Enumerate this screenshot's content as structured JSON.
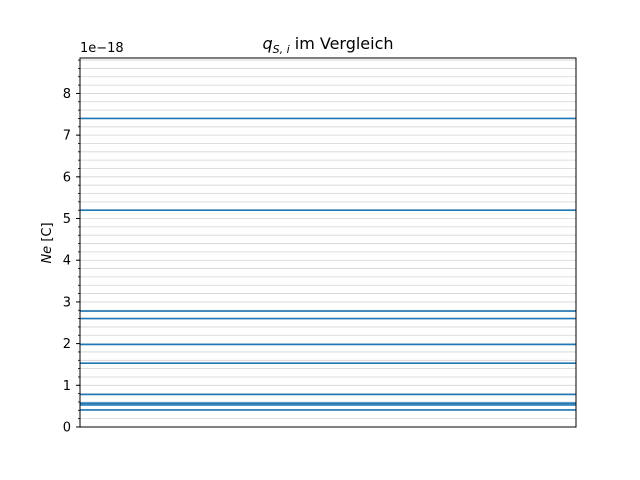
{
  "chart_data": {
    "type": "line",
    "title_main": "q",
    "title_sub": "S, i",
    "title_rest": " im Vergleich",
    "ylabel_var": "Ne",
    "ylabel_unit": " [C]",
    "offset_text": "1e−18",
    "ylim": [
      0,
      8.85
    ],
    "yticks": [
      0,
      1,
      2,
      3,
      4,
      5,
      6,
      7,
      8
    ],
    "ytick_labels": [
      "0",
      "1",
      "2",
      "3",
      "4",
      "5",
      "6",
      "7",
      "8"
    ],
    "minor_step": 0.2,
    "grid": "minor horizontal",
    "x_ticks_visible": false,
    "line_color": "#1f77b4",
    "grid_color": "#d3d3d3",
    "series": [
      {
        "values": [
          7.4
        ]
      },
      {
        "values": [
          5.2
        ]
      },
      {
        "values": [
          2.78
        ]
      },
      {
        "values": [
          2.6
        ]
      },
      {
        "values": [
          1.98
        ]
      },
      {
        "values": [
          1.53
        ]
      },
      {
        "values": [
          0.78
        ]
      },
      {
        "values": [
          0.57
        ]
      },
      {
        "values": [
          0.53
        ]
      },
      {
        "values": [
          0.41
        ]
      }
    ]
  }
}
